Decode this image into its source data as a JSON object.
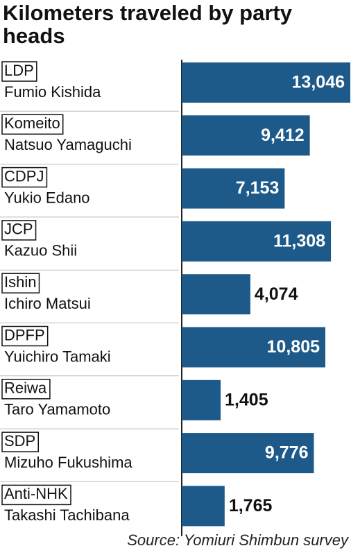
{
  "chart_data": {
    "type": "bar",
    "orientation": "horizontal",
    "title": "Kilometers traveled by party heads",
    "categories": [
      {
        "party": "LDP",
        "leader": "Fumio Kishida"
      },
      {
        "party": "Komeito",
        "leader": "Natsuo Yamaguchi"
      },
      {
        "party": "CDPJ",
        "leader": "Yukio Edano"
      },
      {
        "party": "JCP",
        "leader": "Kazuo Shii"
      },
      {
        "party": "Ishin",
        "leader": "Ichiro Matsui"
      },
      {
        "party": "DPFP",
        "leader": "Yuichiro Tamaki"
      },
      {
        "party": "Reiwa",
        "leader": "Taro Yamamoto"
      },
      {
        "party": "SDP",
        "leader": "Mizuho Fukushima"
      },
      {
        "party": "Anti-NHK",
        "leader": "Takashi Tachibana"
      }
    ],
    "values": [
      13046,
      9412,
      7153,
      11308,
      4074,
      10805,
      1405,
      9776,
      1765
    ],
    "value_labels": [
      "13,046",
      "9,412",
      "7,153",
      "11,308",
      "4,074",
      "10,805",
      "1,405",
      "9,776",
      "1,765"
    ],
    "color": "#1d5a8a",
    "source": "Source: Yomiuri Shimbun survey"
  }
}
